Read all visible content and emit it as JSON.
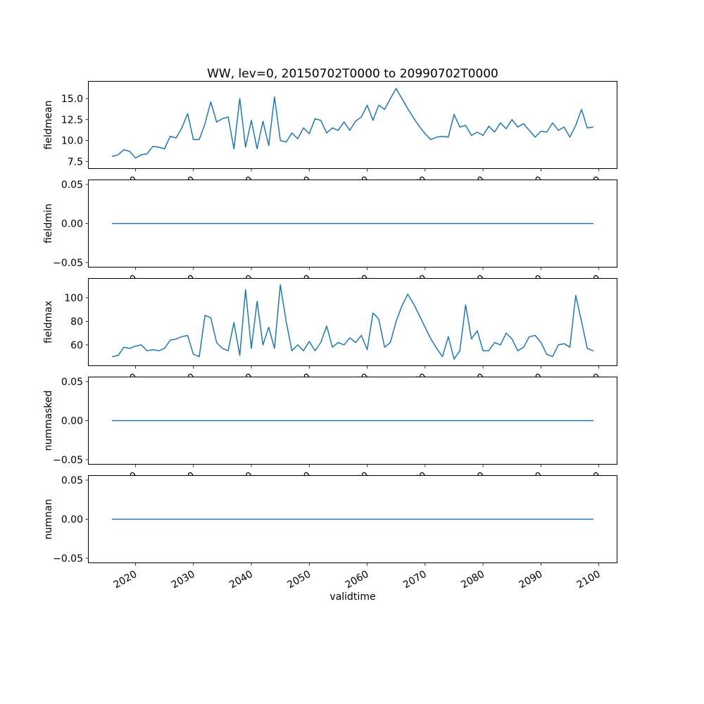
{
  "chart_data": {
    "type": "line",
    "title": "WW, lev=0, 20150702T0000 to 20990702T0000",
    "xlabel": "validtime",
    "line_color": "#1f77b4",
    "grid": false,
    "legend": "none",
    "xlim": [
      2011.8,
      2103.2
    ],
    "xticks": [
      2020,
      2030,
      2040,
      2050,
      2060,
      2070,
      2080,
      2090,
      2100
    ],
    "xtick_labels": [
      "2020",
      "2030",
      "2040",
      "2050",
      "2060",
      "2070",
      "2080",
      "2090",
      "2100"
    ],
    "x": [
      2016,
      2017,
      2018,
      2019,
      2020,
      2021,
      2022,
      2023,
      2024,
      2025,
      2026,
      2027,
      2028,
      2029,
      2030,
      2031,
      2032,
      2033,
      2034,
      2035,
      2036,
      2037,
      2038,
      2039,
      2040,
      2041,
      2042,
      2043,
      2044,
      2045,
      2046,
      2047,
      2048,
      2049,
      2050,
      2051,
      2052,
      2053,
      2054,
      2055,
      2056,
      2057,
      2058,
      2059,
      2060,
      2061,
      2062,
      2063,
      2064,
      2065,
      2066,
      2067,
      2068,
      2069,
      2070,
      2071,
      2072,
      2073,
      2074,
      2075,
      2076,
      2077,
      2078,
      2079,
      2080,
      2081,
      2082,
      2083,
      2084,
      2085,
      2086,
      2087,
      2088,
      2089,
      2090,
      2091,
      2092,
      2093,
      2094,
      2095,
      2096,
      2097,
      2098,
      2099
    ],
    "subplots": [
      {
        "ylabel": "fieldmean",
        "ylim": [
          6.6,
          17.1
        ],
        "yticks": [
          7.5,
          10.0,
          12.5,
          15.0
        ],
        "ytick_labels": [
          "7.5",
          "10.0",
          "12.5",
          "15.0"
        ],
        "values": [
          8.1,
          8.3,
          8.9,
          8.7,
          7.9,
          8.3,
          8.4,
          9.3,
          9.2,
          9.0,
          10.5,
          10.3,
          11.5,
          13.2,
          10.1,
          10.1,
          12.0,
          14.6,
          12.2,
          12.6,
          12.8,
          9.0,
          15.0,
          9.2,
          12.4,
          9.0,
          12.3,
          9.4,
          15.2,
          10.0,
          9.8,
          10.9,
          10.2,
          11.5,
          10.8,
          12.6,
          12.4,
          10.9,
          11.5,
          11.2,
          12.2,
          11.2,
          12.3,
          12.8,
          14.2,
          12.4,
          14.2,
          13.7,
          15.0,
          16.2,
          15.0,
          13.8,
          12.7,
          11.7,
          10.8,
          10.1,
          10.4,
          10.5,
          10.4,
          13.1,
          11.6,
          11.8,
          10.6,
          11.0,
          10.6,
          11.7,
          11.0,
          12.1,
          11.4,
          12.5,
          11.6,
          12.0,
          11.2,
          10.4,
          11.1,
          11.0,
          12.1,
          11.2,
          11.6,
          10.4,
          11.8,
          13.7,
          11.5,
          11.6
        ]
      },
      {
        "ylabel": "fieldmin",
        "ylim": [
          -0.0563,
          0.0563
        ],
        "yticks": [
          -0.05,
          0.0,
          0.05
        ],
        "ytick_labels": [
          "−0.05",
          "0.00",
          "0.05"
        ],
        "constant": 0
      },
      {
        "ylabel": "fieldmax",
        "ylim": [
          42,
          116.7
        ],
        "yticks": [
          60,
          80,
          100
        ],
        "ytick_labels": [
          "60",
          "80",
          "100"
        ],
        "values": [
          50,
          51,
          58,
          57,
          59,
          60,
          55,
          56,
          55,
          57,
          64,
          65,
          67,
          68,
          52,
          50,
          85,
          83,
          62,
          57,
          55,
          79,
          51,
          107,
          57,
          97,
          60,
          75,
          57,
          111,
          80,
          55,
          60,
          55,
          63,
          55,
          62,
          76,
          58,
          62,
          60,
          66,
          62,
          68,
          56,
          87,
          82,
          58,
          62,
          80,
          93,
          103,
          95,
          85,
          75,
          65,
          57,
          50,
          67,
          48,
          55,
          94,
          65,
          72,
          55,
          55,
          62,
          60,
          70,
          65,
          55,
          58,
          67,
          68,
          62,
          52,
          50,
          60,
          61,
          58,
          102,
          80,
          57,
          55
        ]
      },
      {
        "ylabel": "nummasked",
        "ylim": [
          -0.0563,
          0.0563
        ],
        "yticks": [
          -0.05,
          0.0,
          0.05
        ],
        "ytick_labels": [
          "−0.05",
          "0.00",
          "0.05"
        ],
        "constant": 0
      },
      {
        "ylabel": "numnan",
        "ylim": [
          -0.0563,
          0.0563
        ],
        "yticks": [
          -0.05,
          0.0,
          0.05
        ],
        "ytick_labels": [
          "−0.05",
          "0.00",
          "0.05"
        ],
        "constant": 0
      }
    ]
  }
}
